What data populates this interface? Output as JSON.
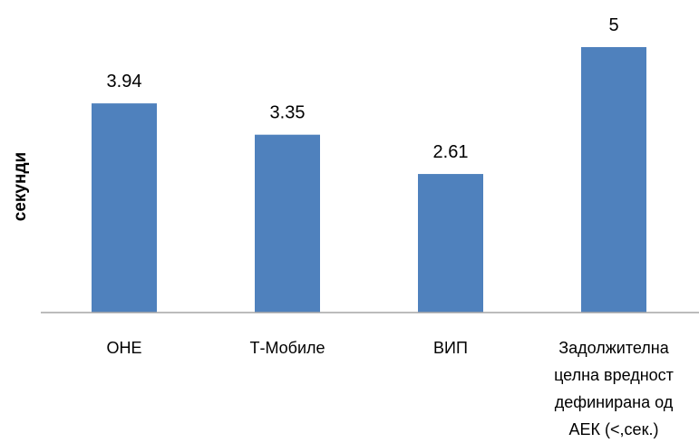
{
  "chart_data": {
    "type": "bar",
    "title": "",
    "xlabel": "",
    "ylabel": "секунди",
    "categories": [
      [
        "ОНЕ"
      ],
      [
        "Т-Мобиле"
      ],
      [
        "ВИП"
      ],
      [
        "Задолжителна",
        "целна вредност",
        "дефинирана од",
        "АЕК (<,сек.)"
      ]
    ],
    "values": [
      3.94,
      3.35,
      2.61,
      5
    ],
    "value_labels": [
      "3.94",
      "3.35",
      "2.61",
      "5"
    ],
    "ylim": [
      0,
      5
    ],
    "grid": false,
    "legend": "none",
    "colors": {
      "bar": "#4f81bd",
      "axis": "#a6a6a6"
    }
  }
}
